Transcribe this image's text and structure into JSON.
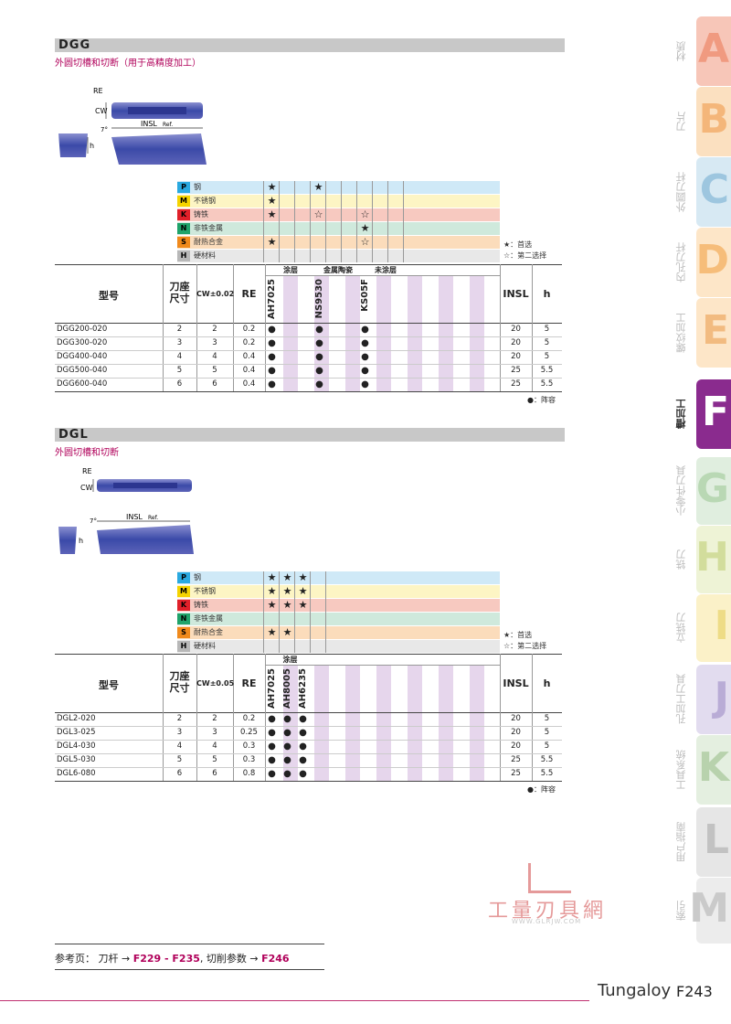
{
  "dgg": {
    "title": "DGG",
    "subtitle": "外圆切槽和切断（用于高精度加工）",
    "diag_labels": {
      "re": "RE",
      "cw": "CW",
      "angle": "7°",
      "insl": "INSL",
      "ref": "Ref.",
      "h": "h"
    },
    "materials": [
      {
        "code": "P",
        "name": "钢",
        "color": "#2aa9e0",
        "bg": "#cfe9f7",
        "marks": [
          "★",
          "",
          "",
          "★",
          "",
          "",
          "",
          "",
          ""
        ]
      },
      {
        "code": "M",
        "name": "不锈钢",
        "color": "#f5d400",
        "bg": "#fdf5c4",
        "marks": [
          "★",
          "",
          "",
          "",
          "",
          "",
          "",
          "",
          ""
        ]
      },
      {
        "code": "K",
        "name": "铸铁",
        "color": "#e0202a",
        "bg": "#f7c9c0",
        "marks": [
          "★",
          "",
          "",
          "☆",
          "",
          "",
          "☆",
          "",
          ""
        ]
      },
      {
        "code": "N",
        "name": "非铁金属",
        "color": "#1fa36a",
        "bg": "#cfe9dc",
        "marks": [
          "",
          "",
          "",
          "",
          "",
          "",
          "★",
          "",
          ""
        ]
      },
      {
        "code": "S",
        "name": "耐热合金",
        "color": "#f08a1c",
        "bg": "#fbdcbb",
        "marks": [
          "★",
          "",
          "",
          "",
          "",
          "",
          "☆",
          "",
          ""
        ]
      },
      {
        "code": "H",
        "name": "硬材料",
        "color": "#b8b8b8",
        "bg": "#e8e8e8",
        "marks": [
          "",
          "",
          "",
          "",
          "",
          "",
          "",
          "",
          ""
        ]
      }
    ],
    "legend": [
      "★：首选",
      "☆：第二选择"
    ],
    "headers": {
      "model": "型号",
      "holder": "刀座\n尺寸",
      "cw": "CW±0.02",
      "re": "RE",
      "insl": "INSL",
      "h": "h"
    },
    "groups": [
      "涂层",
      "金属陶瓷",
      "未涂层"
    ],
    "grades": [
      "AH7025",
      "NS9530",
      "KS05F"
    ],
    "rows": [
      {
        "model": "DGG200-020",
        "holder": "2",
        "cw": "2",
        "re": "0.2",
        "insl": "20",
        "h": "5"
      },
      {
        "model": "DGG300-020",
        "holder": "3",
        "cw": "3",
        "re": "0.2",
        "insl": "20",
        "h": "5"
      },
      {
        "model": "DGG400-040",
        "holder": "4",
        "cw": "4",
        "re": "0.4",
        "insl": "20",
        "h": "5"
      },
      {
        "model": "DGG500-040",
        "holder": "5",
        "cw": "5",
        "re": "0.4",
        "insl": "25",
        "h": "5.5"
      },
      {
        "model": "DGG600-040",
        "holder": "6",
        "cw": "6",
        "re": "0.4",
        "insl": "25",
        "h": "5.5"
      }
    ],
    "stock_note": "●：阵容",
    "dot": "●"
  },
  "dgl": {
    "title": "DGL",
    "subtitle": "外圆切槽和切断",
    "diag_labels": {
      "re": "RE",
      "cw": "CW",
      "angle": "7°",
      "insl": "INSL",
      "ref": "Ref.",
      "h": "h"
    },
    "materials": [
      {
        "code": "P",
        "name": "钢",
        "color": "#2aa9e0",
        "bg": "#cfe9f7",
        "marks": [
          "★",
          "★",
          "★"
        ]
      },
      {
        "code": "M",
        "name": "不锈钢",
        "color": "#f5d400",
        "bg": "#fdf5c4",
        "marks": [
          "★",
          "★",
          "★"
        ]
      },
      {
        "code": "K",
        "name": "铸铁",
        "color": "#e0202a",
        "bg": "#f7c9c0",
        "marks": [
          "★",
          "★",
          "★"
        ]
      },
      {
        "code": "N",
        "name": "非铁金属",
        "color": "#1fa36a",
        "bg": "#cfe9dc",
        "marks": [
          "",
          "",
          ""
        ]
      },
      {
        "code": "S",
        "name": "耐热合金",
        "color": "#f08a1c",
        "bg": "#fbdcbb",
        "marks": [
          "★",
          "★",
          ""
        ]
      },
      {
        "code": "H",
        "name": "硬材料",
        "color": "#b8b8b8",
        "bg": "#e8e8e8",
        "marks": [
          "",
          "",
          ""
        ]
      }
    ],
    "legend": [
      "★：首选",
      "☆：第二选择"
    ],
    "headers": {
      "model": "型号",
      "holder": "刀座\n尺寸",
      "cw": "CW±0.05",
      "re": "RE",
      "insl": "INSL",
      "h": "h"
    },
    "groups": [
      "涂层"
    ],
    "grades": [
      "AH7025",
      "AH8005",
      "AH6235"
    ],
    "rows": [
      {
        "model": "DGL2-020",
        "holder": "2",
        "cw": "2",
        "re": "0.2",
        "insl": "20",
        "h": "5"
      },
      {
        "model": "DGL3-025",
        "holder": "3",
        "cw": "3",
        "re": "0.25",
        "insl": "20",
        "h": "5"
      },
      {
        "model": "DGL4-030",
        "holder": "4",
        "cw": "4",
        "re": "0.3",
        "insl": "20",
        "h": "5"
      },
      {
        "model": "DGL5-030",
        "holder": "5",
        "cw": "5",
        "re": "0.3",
        "insl": "25",
        "h": "5.5"
      },
      {
        "model": "DGL6-080",
        "holder": "6",
        "cw": "6",
        "re": "0.8",
        "insl": "25",
        "h": "5.5"
      }
    ],
    "stock_note": "●：阵容",
    "dot": "●"
  },
  "watermark": {
    "name": "工量刃具網",
    "url": "WWW.GLRJW.COM"
  },
  "reference": {
    "prefix": "参考页：  刀杆 → ",
    "link1": "F229 - F235",
    "mid": ", 切削参数 → ",
    "link2": "F246"
  },
  "footer": {
    "brand": "Tungaloy",
    "page": "F243"
  },
  "side_tabs": [
    {
      "letter": "A",
      "label": "材质",
      "color": "#f7c6b8",
      "text": "#f09a80"
    },
    {
      "letter": "B",
      "label": "刀片",
      "color": "#fbe0c0",
      "text": "#f4b67a"
    },
    {
      "letter": "C",
      "label": "外圆刀杆",
      "color": "#d7e9f3",
      "text": "#9dc6df"
    },
    {
      "letter": "D",
      "label": "内孔刀杆",
      "color": "#fde6c8",
      "text": "#f6bd7a"
    },
    {
      "letter": "E",
      "label": "螺纹加工",
      "color": "#fde6c8",
      "text": "#f2bb80"
    },
    {
      "letter": "F",
      "label": "槽加工",
      "color": "#8a2b8e",
      "text": "#ffffff"
    },
    {
      "letter": "G",
      "label": "小零件刀具",
      "color": "#e0eedf",
      "text": "#b9d8b4"
    },
    {
      "letter": "H",
      "label": "铣刀",
      "color": "#eef3d6",
      "text": "#d2dd9c"
    },
    {
      "letter": "I",
      "label": "立铣刀",
      "color": "#fbf1c8",
      "text": "#eedc86"
    },
    {
      "letter": "J",
      "label": "孔加工刀具",
      "color": "#e2dcef",
      "text": "#b9acd6"
    },
    {
      "letter": "K",
      "label": "工具系统",
      "color": "#e4efe0",
      "text": "#b8d2ad"
    },
    {
      "letter": "L",
      "label": "用户指南",
      "color": "#e6e6e6",
      "text": "#c2c2c2"
    },
    {
      "letter": "M",
      "label": "索引",
      "color": "#ececec",
      "text": "#cacaca"
    }
  ]
}
